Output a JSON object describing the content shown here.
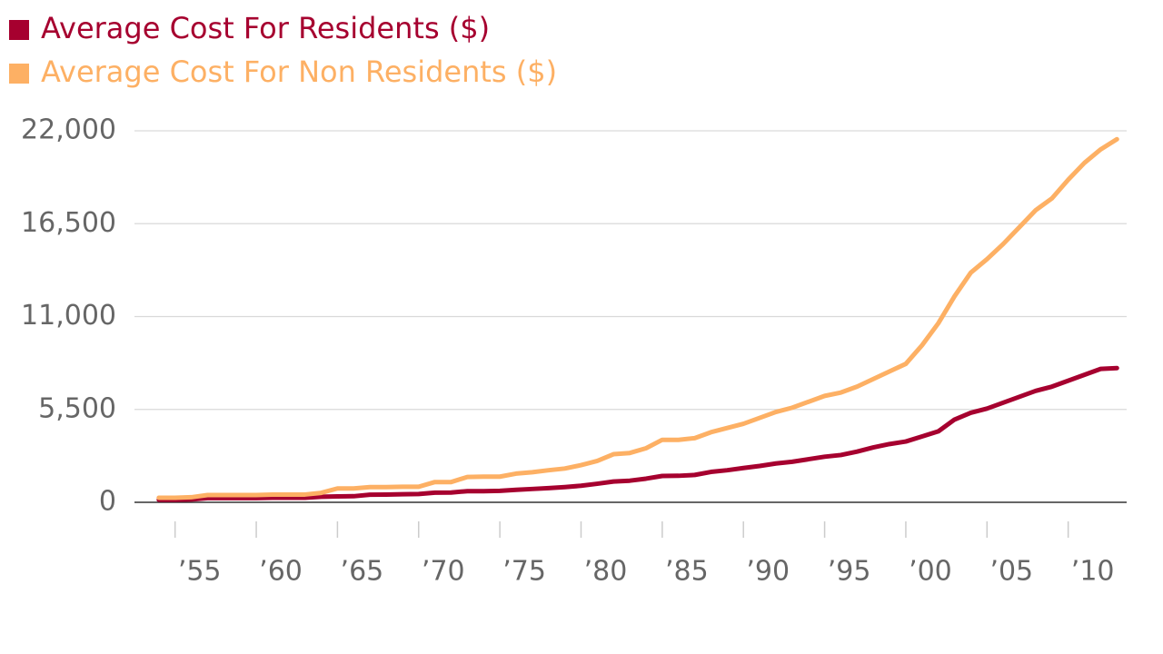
{
  "chart_data": {
    "type": "line",
    "x": [
      1954,
      1955,
      1956,
      1957,
      1958,
      1959,
      1960,
      1961,
      1962,
      1963,
      1964,
      1965,
      1966,
      1967,
      1968,
      1969,
      1970,
      1971,
      1972,
      1973,
      1974,
      1975,
      1976,
      1977,
      1978,
      1979,
      1980,
      1981,
      1982,
      1983,
      1984,
      1985,
      1986,
      1987,
      1988,
      1989,
      1990,
      1991,
      1992,
      1993,
      1994,
      1995,
      1996,
      1997,
      1998,
      1999,
      2000,
      2001,
      2002,
      2003,
      2004,
      2005,
      2006,
      2007,
      2008,
      2009,
      2010,
      2011,
      2012,
      2013
    ],
    "series": [
      {
        "name": "Average Cost For Residents ($)",
        "color": "#a6002f",
        "values": [
          150,
          150,
          170,
          250,
          250,
          250,
          250,
          270,
          270,
          270,
          330,
          350,
          360,
          450,
          460,
          480,
          490,
          570,
          580,
          660,
          660,
          680,
          740,
          790,
          840,
          900,
          980,
          1100,
          1230,
          1280,
          1400,
          1560,
          1570,
          1620,
          1800,
          1900,
          2030,
          2150,
          2300,
          2400,
          2550,
          2700,
          2800,
          3000,
          3250,
          3450,
          3600,
          3900,
          4200,
          4900,
          5300,
          5550,
          5900,
          6250,
          6600,
          6850,
          7200,
          7550,
          7900,
          7950
        ]
      },
      {
        "name": "Average Cost For Non Residents ($)",
        "color": "#fdb064",
        "values": [
          270,
          270,
          300,
          430,
          430,
          430,
          430,
          460,
          460,
          460,
          560,
          820,
          820,
          900,
          900,
          920,
          920,
          1200,
          1200,
          1500,
          1520,
          1520,
          1700,
          1780,
          1900,
          2000,
          2200,
          2450,
          2850,
          2920,
          3200,
          3700,
          3700,
          3800,
          4150,
          4400,
          4650,
          5000,
          5350,
          5600,
          5950,
          6300,
          6500,
          6850,
          7300,
          7750,
          8200,
          9300,
          10600,
          12200,
          13600,
          14400,
          15300,
          16300,
          17300,
          18000,
          19100,
          20100,
          20900,
          21500
        ]
      }
    ],
    "xlim": [
      1952.5,
      2013.6
    ],
    "xticks": [
      {
        "value": 1955,
        "label": "’55"
      },
      {
        "value": 1960,
        "label": "’60"
      },
      {
        "value": 1965,
        "label": "’65"
      },
      {
        "value": 1970,
        "label": "’70"
      },
      {
        "value": 1975,
        "label": "’75"
      },
      {
        "value": 1980,
        "label": "’80"
      },
      {
        "value": 1985,
        "label": "’85"
      },
      {
        "value": 1990,
        "label": "’90"
      },
      {
        "value": 1995,
        "label": "’95"
      },
      {
        "value": 2000,
        "label": "’00"
      },
      {
        "value": 2005,
        "label": "’05"
      },
      {
        "value": 2010,
        "label": "’10"
      }
    ],
    "ylim": [
      0,
      22000
    ],
    "yticks": [
      0,
      {
        "value": 5500,
        "label": "5,500"
      },
      {
        "value": 11000,
        "label": "11,000"
      },
      {
        "value": 16500,
        "label": "16,500"
      },
      {
        "value": 22000,
        "label": "22,000"
      }
    ],
    "grid": true
  }
}
